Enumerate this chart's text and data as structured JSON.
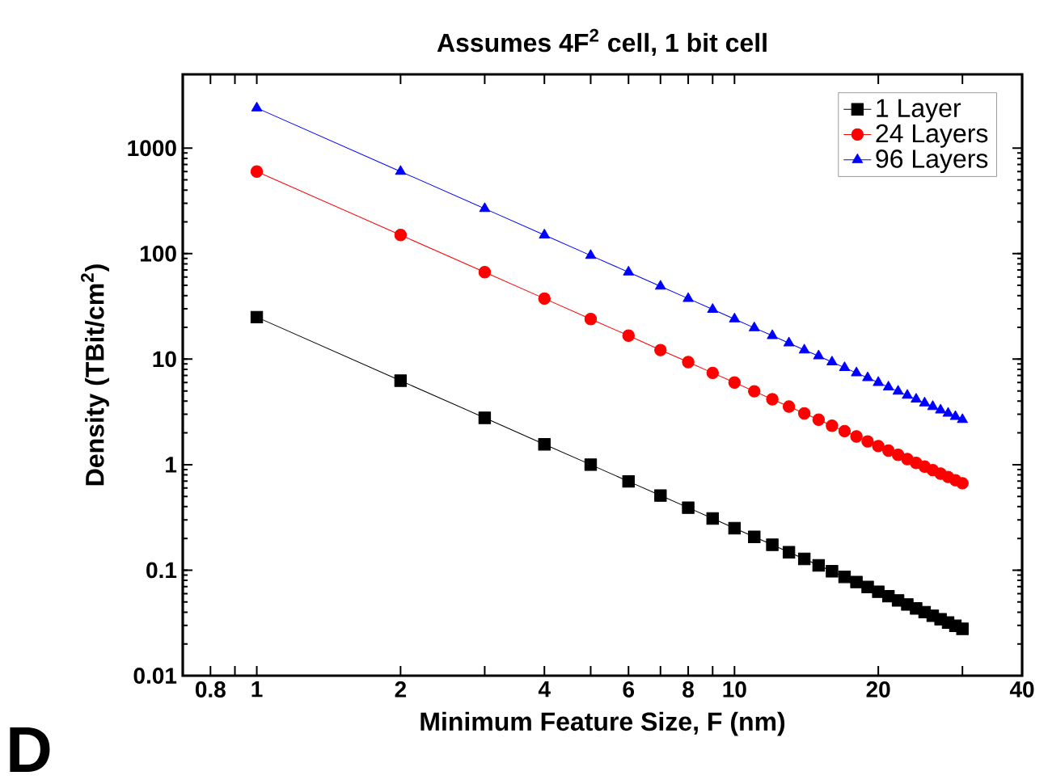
{
  "chart_data": {
    "type": "line",
    "title": "Assumes 4F$^{2}$ cell, 1 bit cell",
    "xlabel": "Minimum Feature Size, F (nm)",
    "ylabel": "Density (TBit/cm$^{2}$)",
    "annotations": [
      "D"
    ],
    "log": "xy",
    "legend": "top right",
    "xlim": [
      0.7,
      40
    ],
    "ylim": [
      0.01,
      5000
    ],
    "xticks": [
      0.8,
      {
        "value": 0.9,
        "label": null
      },
      1,
      2,
      {
        "value": 3,
        "label": null
      },
      4,
      {
        "value": 5,
        "label": null
      },
      6,
      {
        "value": 7,
        "label": null
      },
      8,
      {
        "value": 9,
        "label": null
      },
      10,
      20,
      {
        "value": 30,
        "label": null
      },
      40
    ],
    "yticks": [
      0.01,
      0.1,
      1,
      10,
      100,
      1000
    ],
    "x": [
      1,
      2,
      3,
      4,
      5,
      6,
      7,
      8,
      9,
      10,
      11,
      12,
      13,
      14,
      15,
      16,
      17,
      18,
      19,
      20,
      21,
      22,
      23,
      24,
      25,
      26,
      27,
      28,
      29,
      30
    ],
    "series": [
      {
        "name": "1 Layer",
        "color": "#000000",
        "marker": "square",
        "line_style": "solid",
        "values": [
          25,
          6.25,
          2.78,
          1.56,
          1,
          0.694,
          0.51,
          0.391,
          0.309,
          0.25,
          0.207,
          0.174,
          0.148,
          0.128,
          0.111,
          0.0977,
          0.0865,
          0.0772,
          0.0693,
          0.0625,
          0.0567,
          0.0517,
          0.0473,
          0.0434,
          0.04,
          0.037,
          0.0343,
          0.0319,
          0.0297,
          0.0278
        ]
      },
      {
        "name": "24 Layers",
        "color": "#ff0000",
        "marker": "circle",
        "line_style": "solid",
        "values": [
          600,
          150,
          66.7,
          37.5,
          24,
          16.7,
          12.2,
          9.38,
          7.41,
          6,
          4.96,
          4.17,
          3.55,
          3.06,
          2.67,
          2.34,
          2.08,
          1.85,
          1.66,
          1.5,
          1.36,
          1.24,
          1.13,
          1.04,
          0.96,
          0.888,
          0.823,
          0.765,
          0.713,
          0.667
        ]
      },
      {
        "name": "96 Layers",
        "color": "#0000ff",
        "marker": "triangle",
        "line_style": "solid",
        "values": [
          2400,
          600,
          267,
          150,
          96,
          66.7,
          49.0,
          37.5,
          29.6,
          24,
          19.8,
          16.7,
          14.2,
          12.2,
          10.7,
          9.38,
          8.3,
          7.41,
          6.65,
          6,
          5.44,
          4.96,
          4.54,
          4.17,
          3.84,
          3.55,
          3.29,
          3.06,
          2.85,
          2.67
        ]
      }
    ]
  }
}
